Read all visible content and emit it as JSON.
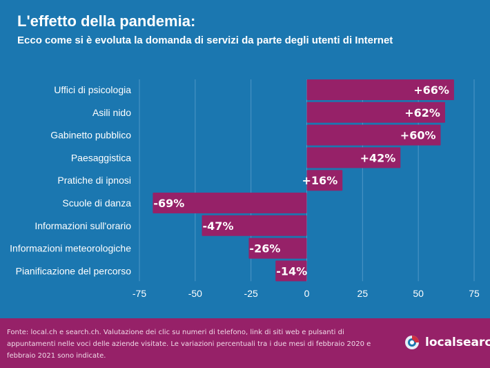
{
  "header": {
    "title": "L'effetto della pandemia:",
    "subtitle": "Ecco come si è evoluta la domanda di servizi da parte degli utenti di Internet"
  },
  "chart_data": {
    "type": "bar",
    "orientation": "horizontal",
    "categories": [
      "Uffici di psicologia",
      "Asili nido",
      "Gabinetto pubblico",
      "Paesaggistica",
      "Pratiche di ipnosi",
      "Scuole di danza",
      "Informazioni sull'orario",
      "Informazioni meteorologiche",
      "Pianificazione del percorso"
    ],
    "values": [
      66,
      62,
      60,
      42,
      16,
      -69,
      -47,
      -26,
      -14
    ],
    "data_labels": [
      "+66%",
      "+62%",
      "+60%",
      "+42%",
      "+16%",
      "-69%",
      "-47%",
      "-26%",
      "-14%"
    ],
    "xlim": [
      -75,
      75
    ],
    "xticks": [
      "-75",
      "-50",
      "-25",
      "0",
      "25",
      "50",
      "75"
    ],
    "grid": true,
    "colors": {
      "bar": "#962168",
      "background": "#1b77b0",
      "grid": "#4f97c6"
    }
  },
  "footer": {
    "note": "Fonte: local.ch e search.ch. Valutazione dei clic su numeri di telefono, link di siti web e pulsanti di appuntamenti nelle voci delle aziende visitate. Le variazioni percentuali tra i due mesi di febbraio 2020 e febbraio 2021 sono indicate.",
    "logo_text": "localsearch"
  }
}
